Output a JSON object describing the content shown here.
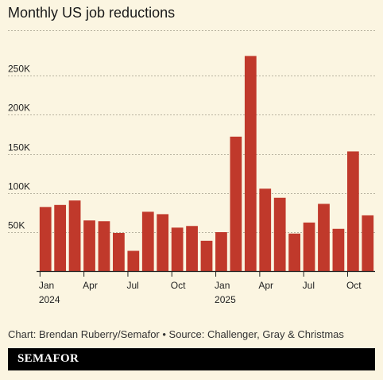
{
  "header": {
    "title": "Monthly US job reductions"
  },
  "footer": {
    "source": "Chart: Brendan Ruberry/Semafor • Source: Challenger, Gray & Christmas",
    "logo": "SEMAFOR"
  },
  "colors": {
    "bar": "#c0392b",
    "background": "#fbf5e1",
    "grid": "#b8b3a0"
  },
  "chart_data": {
    "type": "bar",
    "title": "Monthly US job reductions",
    "xlabel": "",
    "ylabel": "",
    "ylim": [
      0,
      300000
    ],
    "grid": true,
    "y_ticks": [
      {
        "value": 50000,
        "label": "50K"
      },
      {
        "value": 100000,
        "label": "100K"
      },
      {
        "value": 150000,
        "label": "150K"
      },
      {
        "value": 200000,
        "label": "200K"
      },
      {
        "value": 250000,
        "label": "250K"
      }
    ],
    "categories": [
      "2024-01",
      "2024-02",
      "2024-03",
      "2024-04",
      "2024-05",
      "2024-06",
      "2024-07",
      "2024-08",
      "2024-09",
      "2024-10",
      "2024-11",
      "2024-12",
      "2025-01",
      "2025-02",
      "2025-03",
      "2025-04",
      "2025-05",
      "2025-06",
      "2025-07",
      "2025-08",
      "2025-09",
      "2025-10",
      "2025-11"
    ],
    "values": [
      82000,
      84600,
      90300,
      64800,
      63800,
      48800,
      25900,
      75900,
      72800,
      55600,
      57700,
      38800,
      49800,
      172000,
      275200,
      105400,
      93800,
      48000,
      62100,
      86000,
      54100,
      153100,
      71300
    ],
    "x_tick_labels": [
      {
        "index": 0,
        "label": "Jan",
        "sublabel": "2024"
      },
      {
        "index": 3,
        "label": "Apr",
        "sublabel": ""
      },
      {
        "index": 6,
        "label": "Jul",
        "sublabel": ""
      },
      {
        "index": 9,
        "label": "Oct",
        "sublabel": ""
      },
      {
        "index": 12,
        "label": "Jan",
        "sublabel": "2025"
      },
      {
        "index": 15,
        "label": "Apr",
        "sublabel": ""
      },
      {
        "index": 18,
        "label": "Jul",
        "sublabel": ""
      },
      {
        "index": 21,
        "label": "Oct",
        "sublabel": ""
      }
    ]
  }
}
